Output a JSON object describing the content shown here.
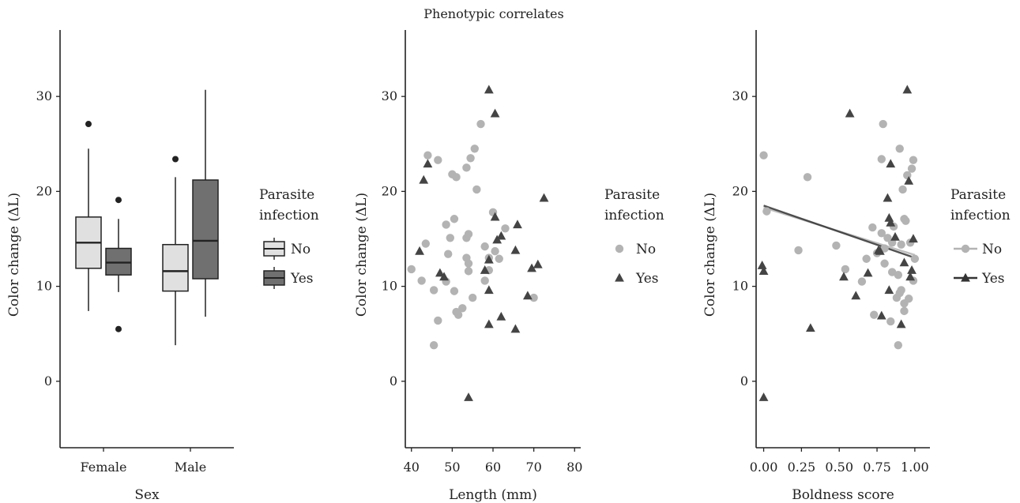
{
  "figure": {
    "title": "Phenotypic correlates"
  },
  "chart_data": [
    {
      "type": "box",
      "xlabel": "Sex",
      "ylabel": "Color change (ΔL)",
      "ylim": [
        -7,
        37
      ],
      "yticks": [
        0,
        10,
        20,
        30
      ],
      "categories": [
        "Female",
        "Male"
      ],
      "legend": {
        "title_lines": [
          "Parasite",
          "infection"
        ],
        "placement": "right",
        "entries": [
          {
            "label": "No",
            "color": "#e0e0e0"
          },
          {
            "label": "Yes",
            "color": "#707070"
          }
        ]
      },
      "series": [
        {
          "name": "No",
          "color": "#e0e0e0",
          "boxes": [
            {
              "category": "Female",
              "whisker_low": 7.4,
              "q1": 11.9,
              "median": 14.6,
              "q3": 17.3,
              "whisker_high": 24.5,
              "outliers": [
                27.1
              ]
            },
            {
              "category": "Male",
              "whisker_low": 3.8,
              "q1": 9.5,
              "median": 11.6,
              "q3": 14.4,
              "whisker_high": 21.5,
              "outliers": [
                23.4
              ]
            }
          ]
        },
        {
          "name": "Yes",
          "color": "#707070",
          "boxes": [
            {
              "category": "Female",
              "whisker_low": 9.4,
              "q1": 11.2,
              "median": 12.5,
              "q3": 14.0,
              "whisker_high": 17.1,
              "outliers": [
                19.1,
                5.5
              ]
            },
            {
              "category": "Male",
              "whisker_low": 6.8,
              "q1": 10.8,
              "median": 14.8,
              "q3": 21.2,
              "whisker_high": 30.7,
              "outliers": []
            }
          ]
        }
      ]
    },
    {
      "type": "scatter",
      "xlabel": "Length (mm)",
      "ylabel": "Color change (ΔL)",
      "xlim": [
        38.5,
        81.5
      ],
      "ylim": [
        -7,
        37
      ],
      "xticks": [
        40,
        50,
        60,
        70,
        80
      ],
      "yticks": [
        0,
        10,
        20,
        30
      ],
      "legend": {
        "title_lines": [
          "Parasite",
          "infection"
        ],
        "placement": "right",
        "entries": [
          {
            "label": "No",
            "marker": "circle",
            "color": "#b3b3b3"
          },
          {
            "label": "Yes",
            "marker": "triangle",
            "color": "#444444"
          }
        ]
      },
      "series": [
        {
          "name": "No",
          "marker": "circle",
          "color": "#b3b3b3",
          "points": [
            [
              40,
              11.8
            ],
            [
              42.5,
              10.6
            ],
            [
              43.5,
              14.5
            ],
            [
              44,
              23.8
            ],
            [
              45.5,
              9.6
            ],
            [
              45.5,
              3.8
            ],
            [
              46.5,
              6.4
            ],
            [
              46.5,
              23.3
            ],
            [
              48.5,
              10.5
            ],
            [
              48.5,
              16.5
            ],
            [
              49,
              13.4
            ],
            [
              49.5,
              15.1
            ],
            [
              50,
              21.8
            ],
            [
              50.5,
              17.1
            ],
            [
              50.5,
              9.5
            ],
            [
              51,
              21.5
            ],
            [
              51,
              7.3
            ],
            [
              51.5,
              7.0
            ],
            [
              52.5,
              7.7
            ],
            [
              53.5,
              22.5
            ],
            [
              53.5,
              15.1
            ],
            [
              53.5,
              13.0
            ],
            [
              54,
              15.5
            ],
            [
              54,
              12.4
            ],
            [
              54,
              11.6
            ],
            [
              54.5,
              23.5
            ],
            [
              55,
              8.8
            ],
            [
              55.5,
              24.5
            ],
            [
              56,
              20.2
            ],
            [
              57,
              27.1
            ],
            [
              58,
              14.2
            ],
            [
              58,
              10.6
            ],
            [
              59,
              11.7
            ],
            [
              59,
              13.0
            ],
            [
              60,
              17.8
            ],
            [
              60.5,
              13.7
            ],
            [
              61.5,
              12.9
            ],
            [
              63,
              16.1
            ],
            [
              70,
              8.8
            ]
          ]
        },
        {
          "name": "Yes",
          "marker": "triangle",
          "color": "#444444",
          "points": [
            [
              42,
              13.7
            ],
            [
              43,
              21.2
            ],
            [
              44,
              22.9
            ],
            [
              47,
              11.4
            ],
            [
              48,
              11.0
            ],
            [
              54,
              -1.7
            ],
            [
              58,
              11.7
            ],
            [
              59,
              30.7
            ],
            [
              59,
              12.8
            ],
            [
              59,
              9.6
            ],
            [
              59,
              6.0
            ],
            [
              60.5,
              28.2
            ],
            [
              60.5,
              17.3
            ],
            [
              61,
              14.9
            ],
            [
              62,
              15.3
            ],
            [
              62,
              6.8
            ],
            [
              65.5,
              13.8
            ],
            [
              65.5,
              5.5
            ],
            [
              66,
              16.5
            ],
            [
              68.5,
              9.0
            ],
            [
              69.5,
              11.9
            ],
            [
              71,
              12.3
            ],
            [
              72.5,
              19.3
            ]
          ]
        }
      ]
    },
    {
      "type": "scatter",
      "xlabel": "Boldness score",
      "ylabel": "Color change (ΔL)",
      "xlim": [
        -0.05,
        1.1
      ],
      "ylim": [
        -7,
        37
      ],
      "xticks": [
        0.0,
        0.25,
        0.5,
        0.75,
        1.0
      ],
      "xtick_labels": [
        "0.00",
        "0.25",
        "0.50",
        "0.75",
        "1.00"
      ],
      "yticks": [
        0,
        10,
        20,
        30
      ],
      "legend": {
        "title_lines": [
          "Parasite",
          "infection"
        ],
        "placement": "right",
        "entries": [
          {
            "label": "No",
            "marker": "circle-line",
            "color": "#b3b3b3"
          },
          {
            "label": "Yes",
            "marker": "triangle-line",
            "color": "#333333"
          }
        ]
      },
      "trend_lines": [
        {
          "series": "No",
          "x": [
            0.0,
            1.0
          ],
          "y": [
            18.3,
            13.3
          ],
          "color": "#b3b3b3"
        },
        {
          "series": "Yes",
          "x": [
            0.0,
            1.0
          ],
          "y": [
            18.5,
            13.0
          ],
          "color": "#333333"
        }
      ],
      "series": [
        {
          "name": "No",
          "marker": "circle",
          "color": "#b3b3b3",
          "points": [
            [
              0.0,
              23.8
            ],
            [
              0.02,
              17.9
            ],
            [
              0.23,
              13.8
            ],
            [
              0.29,
              21.5
            ],
            [
              0.48,
              14.3
            ],
            [
              0.54,
              11.8
            ],
            [
              0.65,
              10.5
            ],
            [
              0.68,
              12.9
            ],
            [
              0.72,
              16.2
            ],
            [
              0.73,
              7.0
            ],
            [
              0.75,
              13.5
            ],
            [
              0.78,
              23.4
            ],
            [
              0.78,
              15.6
            ],
            [
              0.79,
              27.1
            ],
            [
              0.8,
              12.4
            ],
            [
              0.8,
              14.0
            ],
            [
              0.82,
              15.1
            ],
            [
              0.84,
              6.3
            ],
            [
              0.85,
              11.5
            ],
            [
              0.85,
              14.6
            ],
            [
              0.86,
              16.3
            ],
            [
              0.88,
              8.8
            ],
            [
              0.89,
              11.2
            ],
            [
              0.89,
              3.8
            ],
            [
              0.9,
              9.3
            ],
            [
              0.9,
              24.5
            ],
            [
              0.91,
              9.6
            ],
            [
              0.91,
              14.4
            ],
            [
              0.92,
              20.2
            ],
            [
              0.93,
              8.2
            ],
            [
              0.93,
              7.4
            ],
            [
              0.93,
              17.1
            ],
            [
              0.94,
              16.9
            ],
            [
              0.95,
              21.7
            ],
            [
              0.96,
              8.7
            ],
            [
              0.97,
              14.6
            ],
            [
              0.98,
              22.4
            ],
            [
              0.99,
              23.3
            ],
            [
              0.99,
              10.6
            ],
            [
              1.0,
              12.9
            ]
          ]
        },
        {
          "name": "Yes",
          "marker": "triangle",
          "color": "#444444",
          "points": [
            [
              -0.01,
              12.2
            ],
            [
              0.0,
              11.6
            ],
            [
              0.0,
              -1.7
            ],
            [
              0.31,
              5.6
            ],
            [
              0.53,
              11.0
            ],
            [
              0.57,
              28.2
            ],
            [
              0.61,
              9.0
            ],
            [
              0.69,
              11.4
            ],
            [
              0.76,
              13.8
            ],
            [
              0.77,
              13.7
            ],
            [
              0.78,
              6.9
            ],
            [
              0.82,
              19.3
            ],
            [
              0.83,
              9.6
            ],
            [
              0.83,
              17.2
            ],
            [
              0.84,
              16.7
            ],
            [
              0.84,
              22.9
            ],
            [
              0.87,
              15.2
            ],
            [
              0.91,
              6.0
            ],
            [
              0.93,
              12.5
            ],
            [
              0.95,
              30.7
            ],
            [
              0.96,
              21.1
            ],
            [
              0.97,
              11.0
            ],
            [
              0.98,
              11.7
            ],
            [
              0.99,
              15.0
            ]
          ]
        }
      ]
    }
  ]
}
